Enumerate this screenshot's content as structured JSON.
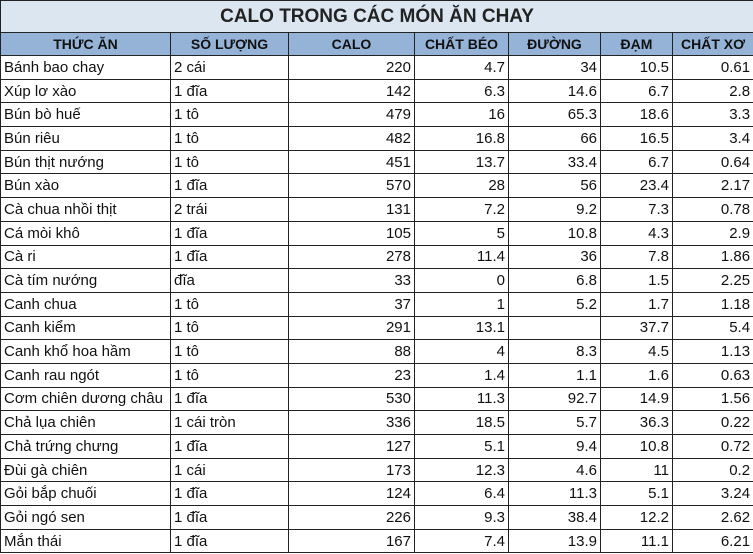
{
  "table": {
    "title": "CALO TRONG CÁC MÓN ĂN CHAY",
    "headers": [
      "THỨC ĂN",
      "SỐ LƯỢNG",
      "CALO",
      "CHẤT BÉO",
      "ĐƯỜNG",
      "ĐẠM",
      "CHẤT XƠ"
    ],
    "rows": [
      [
        "Bánh bao chay",
        "2 cái",
        220,
        4.7,
        34,
        10.5,
        0.61
      ],
      [
        "Xúp lơ xào",
        "1 đĩa",
        142,
        6.3,
        14.6,
        6.7,
        2.8
      ],
      [
        "Bún bò huế",
        "1 tô",
        479,
        16,
        65.3,
        18.6,
        3.3
      ],
      [
        "Bún riêu",
        "1 tô",
        482,
        16.8,
        66,
        16.5,
        3.4
      ],
      [
        "Bún thịt nướng",
        "1 tô",
        451,
        13.7,
        33.4,
        6.7,
        0.64
      ],
      [
        "Bún xào",
        "1 đĩa",
        570,
        28,
        56,
        23.4,
        2.17
      ],
      [
        "Cà chua nhồi thịt",
        "2 trái",
        131,
        7.2,
        9.2,
        7.3,
        0.78
      ],
      [
        "Cá mòi khô",
        "1 đĩa",
        105,
        5,
        10.8,
        4.3,
        2.9
      ],
      [
        "Cà ri",
        "1 đĩa",
        278,
        11.4,
        36,
        7.8,
        1.86
      ],
      [
        "Cà tím nướng",
        "đĩa",
        33,
        0,
        6.8,
        1.5,
        2.25
      ],
      [
        "Canh chua",
        "1 tô",
        37,
        1,
        5.2,
        1.7,
        1.18
      ],
      [
        "Canh kiểm",
        "1 tô",
        291,
        13.1,
        null,
        37.7,
        5.4
      ],
      [
        "Canh khổ hoa hầm",
        "1 tô",
        88,
        4,
        8.3,
        4.5,
        1.13
      ],
      [
        "Canh rau ngót",
        "1 tô",
        23,
        1.4,
        1.1,
        1.6,
        0.63
      ],
      [
        "Cơm chiên dương châu",
        "1 đĩa",
        530,
        11.3,
        92.7,
        14.9,
        1.56
      ],
      [
        "Chả lụa chiên",
        "1 cái tròn",
        336,
        18.5,
        5.7,
        36.3,
        0.22
      ],
      [
        "Chả trứng chưng",
        "1 đĩa",
        127,
        5.1,
        9.4,
        10.8,
        0.72
      ],
      [
        "Đùi gà chiên",
        "1 cái",
        173,
        12.3,
        4.6,
        11,
        0.2
      ],
      [
        "Gỏi bắp chuối",
        "1 đĩa",
        124,
        6.4,
        11.3,
        5.1,
        3.24
      ],
      [
        "Gỏi ngó sen",
        "1 đĩa",
        226,
        9.3,
        38.4,
        12.2,
        2.62
      ],
      [
        "Mắn thái",
        "1 đĩa",
        167,
        7.4,
        13.9,
        11.1,
        6.21
      ]
    ]
  }
}
